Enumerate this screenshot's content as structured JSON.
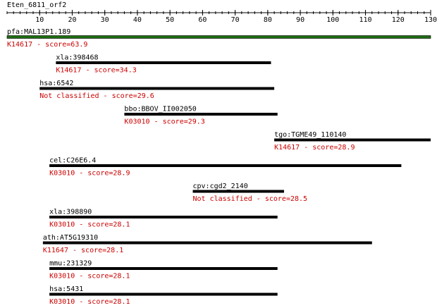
{
  "query": {
    "name": "Eten_6811_orf2",
    "length": 130
  },
  "axis": {
    "min": 0,
    "max": 130,
    "major_ticks": [
      10,
      20,
      30,
      40,
      50,
      60,
      70,
      80,
      90,
      100,
      110,
      120,
      130
    ],
    "minor_step": 2
  },
  "colors": {
    "hit_bar": "#000000",
    "top_hit_bar": "#1f6b14",
    "label_text": "#000000",
    "score_text": "#cc0000",
    "axis": "#000000"
  },
  "hits": [
    {
      "name": "pfa:MAL13P1.189",
      "ko": "K14617",
      "score_text": "K14617 - score=63.9",
      "start": 0,
      "end": 130
    },
    {
      "name": "xla:398468",
      "ko": "K14617",
      "score_text": "K14617 - score=34.3",
      "start": 15,
      "end": 81
    },
    {
      "name": "hsa:6542",
      "ko": "Not classified",
      "score_text": "Not classified - score=29.6",
      "start": 10,
      "end": 82
    },
    {
      "name": "bbo:BBOV_II002050",
      "ko": "K03010",
      "score_text": "K03010 - score=29.3",
      "start": 36,
      "end": 83
    },
    {
      "name": "tgo:TGME49_110140",
      "ko": "K14617",
      "score_text": "K14617 - score=28.9",
      "start": 82,
      "end": 130
    },
    {
      "name": "cel:C26E6.4",
      "ko": "K03010",
      "score_text": "K03010 - score=28.9",
      "start": 13,
      "end": 121
    },
    {
      "name": "cpv:cgd2_2140",
      "ko": "Not classified",
      "score_text": "Not classified - score=28.5",
      "start": 57,
      "end": 85
    },
    {
      "name": "xla:398890",
      "ko": "K03010",
      "score_text": "K03010 - score=28.1",
      "start": 13,
      "end": 83
    },
    {
      "name": "ath:AT5G19310",
      "ko": "K11647",
      "score_text": "K11647 - score=28.1",
      "start": 11,
      "end": 112
    },
    {
      "name": "mmu:231329",
      "ko": "K03010",
      "score_text": "K03010 - score=28.1",
      "start": 13,
      "end": 83
    },
    {
      "name": "hsa:5431",
      "ko": "K03010",
      "score_text": "K03010 - score=28.1",
      "start": 13,
      "end": 83
    }
  ]
}
